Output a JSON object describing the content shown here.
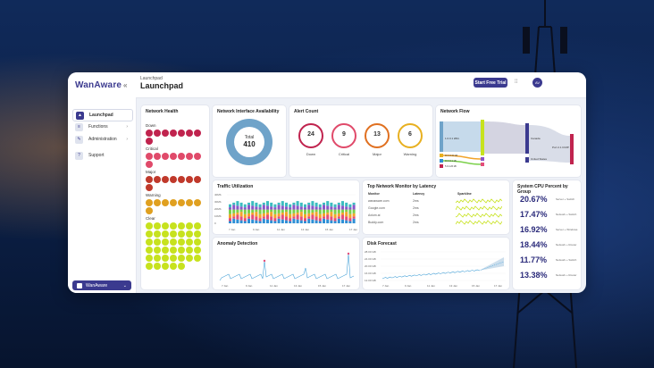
{
  "app": {
    "logo": "WanAware",
    "page_title": "Launchpad",
    "breadcrumb": "Launchpad",
    "trial_button": "Start Free Trial",
    "avatar_initials": "AV",
    "accent": "#3b3a8f"
  },
  "sidebar": {
    "items": [
      {
        "label": "Launchpad",
        "icon": "rocket-icon",
        "glyph": "▲"
      },
      {
        "label": "Functions",
        "icon": "functions-icon",
        "glyph": "≡"
      },
      {
        "label": "Administration",
        "icon": "admin-icon",
        "glyph": "✎"
      },
      {
        "label": "Support",
        "icon": "support-icon",
        "glyph": "?"
      }
    ],
    "workspace": "WanAware"
  },
  "network_health": {
    "title": "Network Health",
    "groups": [
      {
        "label": "Down",
        "count": 8,
        "color": "#c0234e"
      },
      {
        "label": "Critical",
        "count": 8,
        "color": "#e04a6a"
      },
      {
        "label": "Major",
        "count": 8,
        "color": "#c0392b"
      },
      {
        "label": "Warning",
        "count": 8,
        "color": "#e0a020"
      },
      {
        "label": "Clear",
        "count": 40,
        "color": "#c7e21e"
      }
    ]
  },
  "interface_availability": {
    "title": "Network Interface Availability",
    "center_label": "Total",
    "total": "410",
    "color": "#6fa3c9"
  },
  "alert_count": {
    "title": "Alert Count",
    "items": [
      {
        "label": "Down",
        "value": "24",
        "color": "#c0234e"
      },
      {
        "label": "Critical",
        "value": "9",
        "color": "#e04a6a"
      },
      {
        "label": "Major",
        "value": "13",
        "color": "#e07020"
      },
      {
        "label": "Warning",
        "value": "6",
        "color": "#e8b020"
      }
    ]
  },
  "network_flow": {
    "title": "Network Flow",
    "left_labels": [
      "1.0.0.1 kB/s",
      "10.4.4.24 kB",
      "10.4.4.1 kB",
      "5.9.4.26 kB"
    ],
    "mid_labels": [
      "Canada",
      "United States"
    ],
    "right_label": "Port 2.1 ICMP"
  },
  "traffic": {
    "title": "Traffic Utilization",
    "y_ticks": [
      "40Mb",
      "30Mb",
      "20Mb",
      "10Mb",
      "0"
    ],
    "x_ticks": [
      "7 Jan",
      "9 Jan",
      "11 Jan",
      "13 Jan",
      "15 Jan",
      "17 Jan"
    ],
    "stack_colors": [
      "#2e8fd6",
      "#e44d7a",
      "#f2a42a",
      "#7bd04a",
      "#8a56c9",
      "#3bbcc0"
    ]
  },
  "latency": {
    "title": "Top Network Monitor by Latency",
    "columns": [
      "Monitor",
      "Latency",
      "Sparkline"
    ],
    "rows": [
      {
        "monitor": "wanaware.com",
        "latency": "2ms"
      },
      {
        "monitor": "Google.com",
        "latency": "2ms"
      },
      {
        "monitor": "Axiom.ai",
        "latency": "2ms"
      },
      {
        "monitor": "Buddy.com",
        "latency": "2ms"
      }
    ]
  },
  "cpu": {
    "title": "System CPU Percent by Group",
    "rows": [
      {
        "value": "20.67%",
        "name": "Server + Switch"
      },
      {
        "value": "17.47%",
        "name": "Network + Switch"
      },
      {
        "value": "16.92%",
        "name": "Server + Windows"
      },
      {
        "value": "18.44%",
        "name": "Network + Router"
      },
      {
        "value": "11.77%",
        "name": "Network + Switch"
      },
      {
        "value": "13.38%",
        "name": "Network + Router"
      }
    ]
  },
  "anomaly": {
    "title": "Anomaly Detection",
    "x_ticks": [
      "7 Jan",
      "9 Jan",
      "11 Jan",
      "13 Jan",
      "15 Jan",
      "17 Jan"
    ],
    "color": "#4aa3d8"
  },
  "disk": {
    "title": "Disk Forecast",
    "y_ticks": [
      "28.00 GB",
      "24.00 GB",
      "20.00 GB",
      "16.00 GB",
      "12.00 GB"
    ],
    "x_ticks": [
      "7 Jan",
      "9 Jan",
      "11 Jan",
      "13 Jan",
      "15 Jan",
      "17 Jan"
    ],
    "color": "#4aa3d8"
  }
}
